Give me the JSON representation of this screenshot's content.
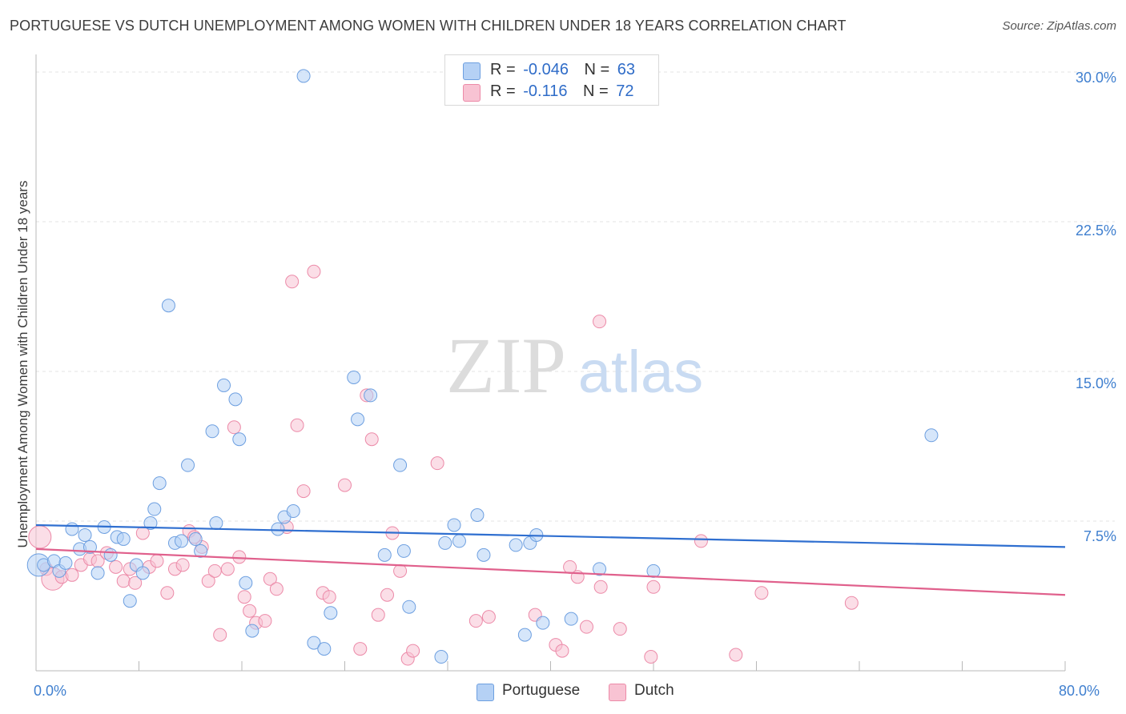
{
  "title": "PORTUGUESE VS DUTCH UNEMPLOYMENT AMONG WOMEN WITH CHILDREN UNDER 18 YEARS CORRELATION CHART",
  "source": "Source: ZipAtlas.com",
  "watermark": {
    "zip": "ZIP",
    "atlas": "atlas"
  },
  "legend": {
    "rows": [
      {
        "r_label": "R =",
        "r_value": "-0.046",
        "n_label": "N =",
        "n_value": "63"
      },
      {
        "r_label": "R =",
        "r_value": "-0.116",
        "n_label": "N =",
        "n_value": "72"
      }
    ]
  },
  "colors": {
    "portuguese_fill": "#b5d1f5",
    "portuguese_stroke": "#6d9fe0",
    "portuguese_line": "#2f6fd0",
    "dutch_fill": "#f8c3d3",
    "dutch_stroke": "#ec8aa8",
    "dutch_line": "#e0608c",
    "grid": "#e3e3e3",
    "tick_label": "#3f7fcf"
  },
  "chart_data": {
    "type": "scatter",
    "title": "PORTUGUESE VS DUTCH UNEMPLOYMENT AMONG WOMEN WITH CHILDREN UNDER 18 YEARS CORRELATION CHART",
    "xlabel": "",
    "ylabel": "Unemployment Among Women with Children Under 18 years",
    "xlim": [
      0,
      80
    ],
    "ylim": [
      0,
      30.8
    ],
    "x_tick_labels": [
      "0.0%",
      "80.0%"
    ],
    "y_ticks": [
      7.5,
      15.0,
      22.5,
      30.0
    ],
    "y_tick_labels": [
      "7.5%",
      "15.0%",
      "22.5%",
      "30.0%"
    ],
    "grid": true,
    "legend_position": "top-center",
    "series": [
      {
        "name": "Portuguese",
        "r": -0.046,
        "n": 63,
        "trend": {
          "x": [
            0,
            80
          ],
          "y": [
            7.3,
            6.2
          ]
        },
        "points": [
          {
            "x": 0.2,
            "y": 5.3,
            "big": true
          },
          {
            "x": 0.6,
            "y": 5.3
          },
          {
            "x": 1.4,
            "y": 5.5
          },
          {
            "x": 1.8,
            "y": 5.0
          },
          {
            "x": 2.3,
            "y": 5.4
          },
          {
            "x": 2.8,
            "y": 7.1
          },
          {
            "x": 3.4,
            "y": 6.1
          },
          {
            "x": 3.8,
            "y": 6.8
          },
          {
            "x": 4.2,
            "y": 6.2
          },
          {
            "x": 4.8,
            "y": 4.9
          },
          {
            "x": 5.3,
            "y": 7.2
          },
          {
            "x": 5.8,
            "y": 5.8
          },
          {
            "x": 6.3,
            "y": 6.7
          },
          {
            "x": 6.8,
            "y": 6.6
          },
          {
            "x": 7.3,
            "y": 3.5
          },
          {
            "x": 7.8,
            "y": 5.3
          },
          {
            "x": 8.3,
            "y": 4.9
          },
          {
            "x": 8.9,
            "y": 7.4
          },
          {
            "x": 9.2,
            "y": 8.1
          },
          {
            "x": 9.6,
            "y": 9.4
          },
          {
            "x": 10.3,
            "y": 18.3
          },
          {
            "x": 10.8,
            "y": 6.4
          },
          {
            "x": 11.3,
            "y": 6.5
          },
          {
            "x": 11.8,
            "y": 10.3
          },
          {
            "x": 12.4,
            "y": 6.6
          },
          {
            "x": 12.8,
            "y": 6.0
          },
          {
            "x": 13.7,
            "y": 12.0
          },
          {
            "x": 14.0,
            "y": 7.4
          },
          {
            "x": 14.6,
            "y": 14.3
          },
          {
            "x": 15.5,
            "y": 13.6
          },
          {
            "x": 15.8,
            "y": 11.6
          },
          {
            "x": 16.3,
            "y": 4.4
          },
          {
            "x": 16.8,
            "y": 2.0
          },
          {
            "x": 18.8,
            "y": 7.1
          },
          {
            "x": 19.3,
            "y": 7.7
          },
          {
            "x": 20.0,
            "y": 8.0
          },
          {
            "x": 20.8,
            "y": 29.8
          },
          {
            "x": 21.6,
            "y": 1.4
          },
          {
            "x": 22.4,
            "y": 1.1
          },
          {
            "x": 22.9,
            "y": 2.9
          },
          {
            "x": 24.7,
            "y": 14.7
          },
          {
            "x": 25.0,
            "y": 12.6
          },
          {
            "x": 26.0,
            "y": 13.8
          },
          {
            "x": 27.1,
            "y": 5.8
          },
          {
            "x": 28.3,
            "y": 10.3
          },
          {
            "x": 28.6,
            "y": 6.0
          },
          {
            "x": 29.0,
            "y": 3.2
          },
          {
            "x": 31.5,
            "y": 0.7
          },
          {
            "x": 31.8,
            "y": 6.4
          },
          {
            "x": 32.5,
            "y": 7.3
          },
          {
            "x": 32.9,
            "y": 6.5
          },
          {
            "x": 34.3,
            "y": 7.8
          },
          {
            "x": 34.8,
            "y": 5.8
          },
          {
            "x": 37.3,
            "y": 6.3
          },
          {
            "x": 38.0,
            "y": 1.8
          },
          {
            "x": 38.4,
            "y": 6.4
          },
          {
            "x": 38.9,
            "y": 6.8
          },
          {
            "x": 39.4,
            "y": 2.4
          },
          {
            "x": 41.6,
            "y": 2.6
          },
          {
            "x": 43.8,
            "y": 5.1
          },
          {
            "x": 48.0,
            "y": 5.0
          },
          {
            "x": 69.6,
            "y": 11.8
          }
        ]
      },
      {
        "name": "Dutch",
        "r": -0.116,
        "n": 72,
        "trend": {
          "x": [
            0,
            80
          ],
          "y": [
            6.1,
            3.8
          ]
        },
        "points": [
          {
            "x": 0.3,
            "y": 6.7,
            "big": true
          },
          {
            "x": 0.8,
            "y": 5.1
          },
          {
            "x": 1.3,
            "y": 4.6,
            "big": true
          },
          {
            "x": 2.0,
            "y": 4.7
          },
          {
            "x": 2.8,
            "y": 4.8
          },
          {
            "x": 3.5,
            "y": 5.3
          },
          {
            "x": 4.2,
            "y": 5.6
          },
          {
            "x": 4.8,
            "y": 5.5
          },
          {
            "x": 5.5,
            "y": 5.9
          },
          {
            "x": 6.2,
            "y": 5.2
          },
          {
            "x": 6.8,
            "y": 4.5
          },
          {
            "x": 7.3,
            "y": 5.1
          },
          {
            "x": 7.7,
            "y": 4.4
          },
          {
            "x": 8.3,
            "y": 6.9
          },
          {
            "x": 8.8,
            "y": 5.2
          },
          {
            "x": 9.4,
            "y": 5.5
          },
          {
            "x": 10.2,
            "y": 3.9
          },
          {
            "x": 10.8,
            "y": 5.1
          },
          {
            "x": 11.4,
            "y": 5.3
          },
          {
            "x": 11.9,
            "y": 7.0
          },
          {
            "x": 12.3,
            "y": 6.7
          },
          {
            "x": 12.9,
            "y": 6.2
          },
          {
            "x": 13.4,
            "y": 4.5
          },
          {
            "x": 13.9,
            "y": 5.0
          },
          {
            "x": 14.3,
            "y": 1.8
          },
          {
            "x": 14.9,
            "y": 5.1
          },
          {
            "x": 15.4,
            "y": 12.2
          },
          {
            "x": 15.8,
            "y": 5.7
          },
          {
            "x": 16.2,
            "y": 3.7
          },
          {
            "x": 16.6,
            "y": 3.0
          },
          {
            "x": 17.1,
            "y": 2.4
          },
          {
            "x": 17.8,
            "y": 2.5
          },
          {
            "x": 18.2,
            "y": 4.6
          },
          {
            "x": 18.7,
            "y": 4.1
          },
          {
            "x": 19.5,
            "y": 7.2
          },
          {
            "x": 19.9,
            "y": 19.5
          },
          {
            "x": 20.3,
            "y": 12.3
          },
          {
            "x": 20.8,
            "y": 9.0
          },
          {
            "x": 21.6,
            "y": 20.0
          },
          {
            "x": 22.3,
            "y": 3.9
          },
          {
            "x": 22.8,
            "y": 3.7
          },
          {
            "x": 24.0,
            "y": 9.3
          },
          {
            "x": 25.2,
            "y": 1.1
          },
          {
            "x": 25.7,
            "y": 13.8
          },
          {
            "x": 26.1,
            "y": 11.6
          },
          {
            "x": 26.6,
            "y": 2.8
          },
          {
            "x": 27.3,
            "y": 3.8
          },
          {
            "x": 27.7,
            "y": 6.9
          },
          {
            "x": 28.3,
            "y": 5.0
          },
          {
            "x": 28.9,
            "y": 0.6
          },
          {
            "x": 29.3,
            "y": 1.0
          },
          {
            "x": 31.2,
            "y": 10.4
          },
          {
            "x": 34.2,
            "y": 2.5
          },
          {
            "x": 35.2,
            "y": 2.7
          },
          {
            "x": 38.8,
            "y": 2.8
          },
          {
            "x": 40.4,
            "y": 1.3
          },
          {
            "x": 40.9,
            "y": 1.0
          },
          {
            "x": 41.5,
            "y": 5.2
          },
          {
            "x": 42.1,
            "y": 4.7
          },
          {
            "x": 42.8,
            "y": 2.2
          },
          {
            "x": 43.8,
            "y": 17.5
          },
          {
            "x": 43.9,
            "y": 4.2
          },
          {
            "x": 45.4,
            "y": 2.1
          },
          {
            "x": 47.8,
            "y": 0.7
          },
          {
            "x": 48.0,
            "y": 4.2
          },
          {
            "x": 51.7,
            "y": 6.5
          },
          {
            "x": 54.4,
            "y": 0.8
          },
          {
            "x": 56.4,
            "y": 3.9
          },
          {
            "x": 63.4,
            "y": 3.4
          }
        ]
      }
    ]
  },
  "bottom_legend": [
    "Portuguese",
    "Dutch"
  ]
}
